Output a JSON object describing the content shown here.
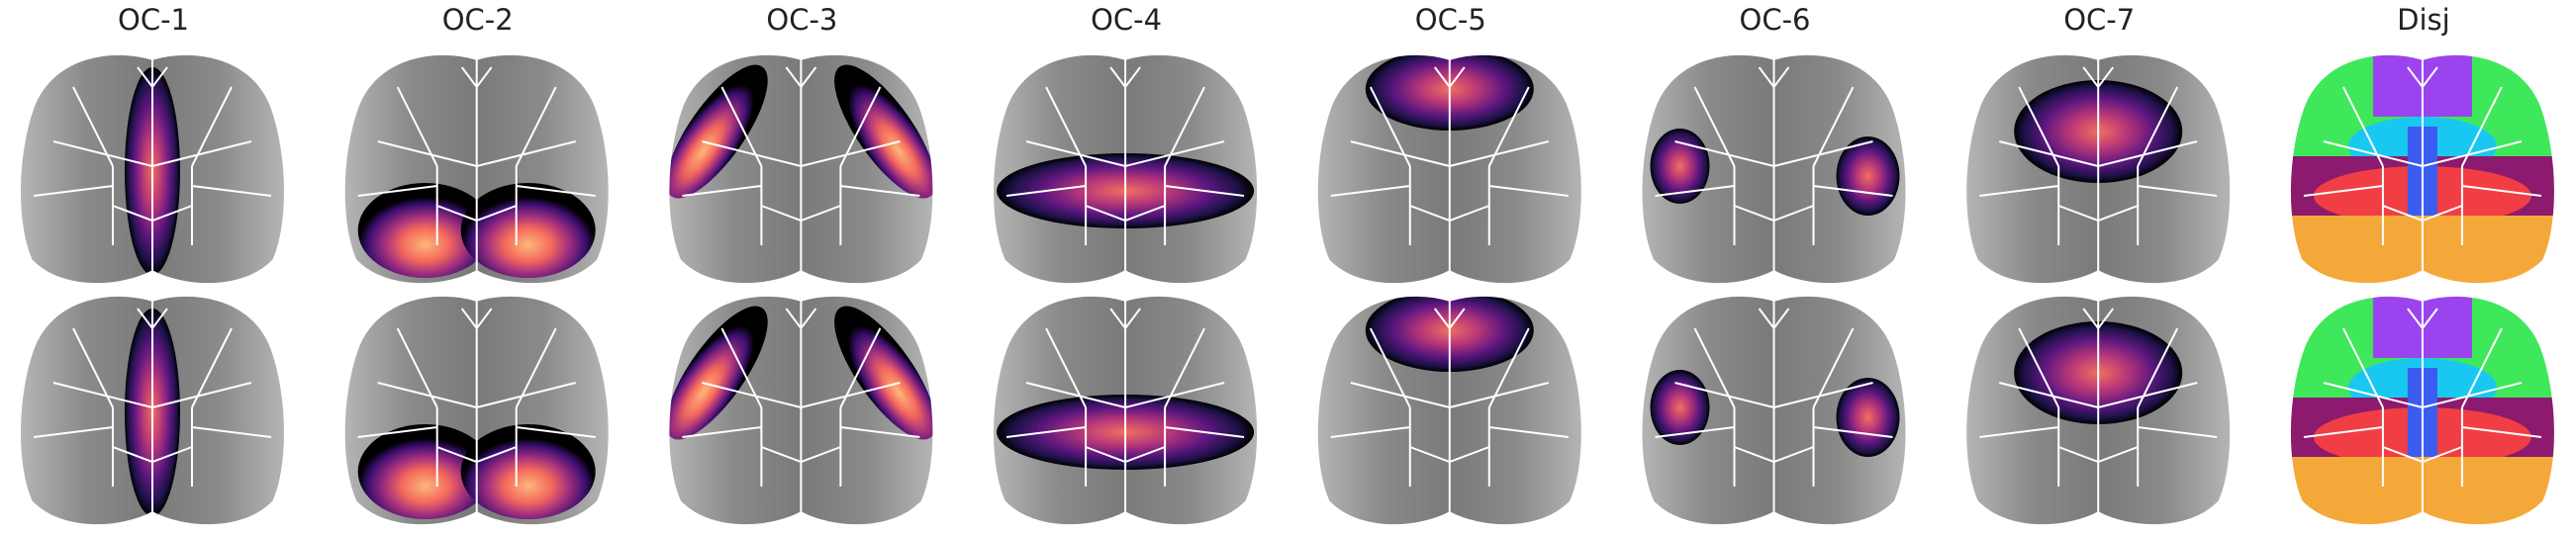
{
  "titles": [
    "OC-1",
    "OC-2",
    "OC-3",
    "OC-4",
    "OC-5",
    "OC-6",
    "OC-7",
    "Disj"
  ]
}
